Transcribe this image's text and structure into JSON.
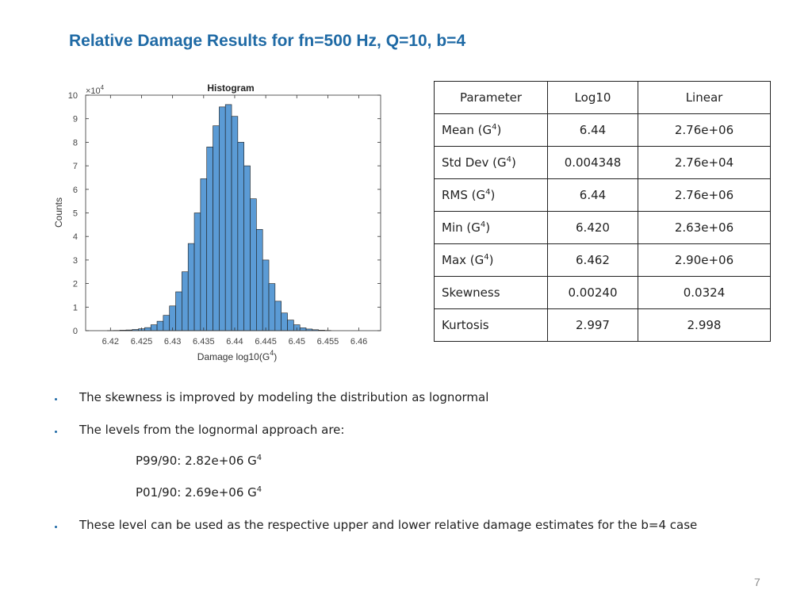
{
  "slide": {
    "title": "Relative Damage Results for fn=500 Hz, Q=10, b=4",
    "page_number": "7"
  },
  "chart_data": {
    "type": "bar",
    "title": "Histogram",
    "xlabel": "Damage log10(G",
    "xlabel_sup": "4",
    "xlabel_end": ")",
    "ylabel": "Counts",
    "y_exponent_label": "×10",
    "y_exponent": "4",
    "xlim": [
      6.416,
      6.4635
    ],
    "ylim": [
      0,
      10
    ],
    "x_ticks": [
      6.42,
      6.425,
      6.43,
      6.435,
      6.44,
      6.445,
      6.45,
      6.455,
      6.46
    ],
    "x_tick_labels": [
      "6.42",
      "6.425",
      "6.43",
      "6.435",
      "6.44",
      "6.445",
      "6.45",
      "6.455",
      "6.46"
    ],
    "y_ticks": [
      0,
      1,
      2,
      3,
      4,
      5,
      6,
      7,
      8,
      9,
      10
    ],
    "y_tick_labels": [
      "0",
      "1",
      "2",
      "3",
      "4",
      "5",
      "6",
      "7",
      "8",
      "9",
      "10"
    ],
    "bar_color": "#5b9bd5",
    "bin_start": 6.4195,
    "bin_width": 0.001,
    "values": [
      0.005,
      0.01,
      0.02,
      0.03,
      0.05,
      0.08,
      0.13,
      0.25,
      0.4,
      0.65,
      1.05,
      1.65,
      2.5,
      3.7,
      5.0,
      6.45,
      7.8,
      8.7,
      9.5,
      9.6,
      9.1,
      8.0,
      7.0,
      5.6,
      4.3,
      3.0,
      2.0,
      1.25,
      0.75,
      0.45,
      0.25,
      0.12,
      0.07,
      0.04,
      0.02,
      0.01
    ]
  },
  "table": {
    "headers": [
      "Parameter",
      "Log10",
      "Linear"
    ],
    "rows": [
      {
        "name": "Mean (G",
        "sup": "4",
        "end": ")",
        "log10": "6.44",
        "linear": "2.76e+06"
      },
      {
        "name": "Std Dev (G",
        "sup": "4",
        "end": ")",
        "log10": "0.004348",
        "linear": "2.76e+04"
      },
      {
        "name": "RMS (G",
        "sup": "4",
        "end": ")",
        "log10": "6.44",
        "linear": "2.76e+06"
      },
      {
        "name": "Min (G",
        "sup": "4",
        "end": ")",
        "log10": "6.420",
        "linear": "2.63e+06"
      },
      {
        "name": "Max (G",
        "sup": "4",
        "end": ")",
        "log10": "6.462",
        "linear": "2.90e+06"
      },
      {
        "name": "Skewness",
        "sup": "",
        "end": "",
        "log10": "0.00240",
        "linear": "0.0324"
      },
      {
        "name": "Kurtosis",
        "sup": "",
        "end": "",
        "log10": "2.997",
        "linear": "2.998"
      }
    ]
  },
  "bullets": {
    "b1": "The skewness is improved by modeling the distribution as lognormal",
    "b2": "The levels from the lognormal approach are:",
    "p99": "P99/90:  2.82e+06 G",
    "p99_sup": "4",
    "p01": "P01/90:  2.69e+06 G",
    "p01_sup": "4",
    "b3": "These level can be used as the respective upper and lower relative damage estimates for the b=4 case"
  }
}
